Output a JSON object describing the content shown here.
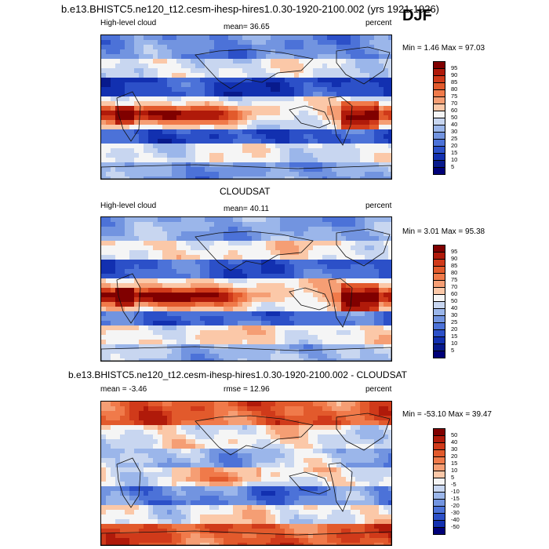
{
  "season": "DJF",
  "model_title": "b.e13.BHISTC5.ne120_t12.cesm-ihesp-hires1.0.30-1920-2100.002 (yrs 1921-1926)",
  "panels": [
    {
      "id": "model",
      "left": "High-level cloud",
      "center": "mean=  36.65",
      "right": "percent",
      "stats": "Min =   1.46 Max =  97.03"
    },
    {
      "id": "obs",
      "heading": "CLOUDSAT",
      "left": "High-level cloud",
      "center": "mean=  40.11",
      "right": "percent",
      "stats": "Min =   3.01 Max =  95.38"
    },
    {
      "id": "diff",
      "heading": "b.e13.BHISTC5.ne120_t12.cesm-ihesp-hires1.0.30-1920-2100.002 - CLOUDSAT",
      "left": "mean =  -3.46",
      "center": "rmse =  12.96",
      "right": "percent",
      "stats": "Min = -53.10 Max =  39.47"
    }
  ],
  "chart_data": [
    {
      "type": "heatmap",
      "title": "b.e13.BHISTC5.ne120_t12.cesm-ihesp-hires1.0.30-1920-2100.002 (yrs 1921-1926)",
      "variable": "High-level cloud",
      "units": "percent",
      "mean": 36.65,
      "min": 1.46,
      "max": 97.03,
      "levels": [
        "95",
        "90",
        "85",
        "80",
        "75",
        "70",
        "60",
        "50",
        "40",
        "30",
        "25",
        "20",
        "15",
        "10",
        "5"
      ],
      "colors": [
        "#800000",
        "#b01a0a",
        "#d03a1a",
        "#e25a2c",
        "#f07a4a",
        "#f59e74",
        "#fbc8a8",
        "#f5f5f5",
        "#c8d6f0",
        "#9bb6ea",
        "#7294e0",
        "#4c72d8",
        "#2c50c8",
        "#1230b0",
        "#081a8c",
        "#000078"
      ]
    },
    {
      "type": "heatmap",
      "title": "CLOUDSAT",
      "variable": "High-level cloud",
      "units": "percent",
      "mean": 40.11,
      "min": 3.01,
      "max": 95.38,
      "levels": [
        "95",
        "90",
        "85",
        "80",
        "75",
        "70",
        "60",
        "50",
        "40",
        "30",
        "25",
        "20",
        "15",
        "10",
        "5"
      ],
      "colors": [
        "#800000",
        "#b01a0a",
        "#d03a1a",
        "#e25a2c",
        "#f07a4a",
        "#f59e74",
        "#fbc8a8",
        "#f5f5f5",
        "#c8d6f0",
        "#9bb6ea",
        "#7294e0",
        "#4c72d8",
        "#2c50c8",
        "#1230b0",
        "#081a8c",
        "#000078"
      ]
    },
    {
      "type": "heatmap",
      "title": "b.e13.BHISTC5.ne120_t12.cesm-ihesp-hires1.0.30-1920-2100.002 - CLOUDSAT",
      "units": "percent",
      "mean": -3.46,
      "rmse": 12.96,
      "min": -53.1,
      "max": 39.47,
      "levels": [
        "50",
        "40",
        "30",
        "20",
        "15",
        "10",
        "5",
        "-5",
        "-10",
        "-15",
        "-20",
        "-30",
        "-40",
        "-50"
      ],
      "colors": [
        "#800000",
        "#b01a0a",
        "#d03a1a",
        "#e25a2c",
        "#f07a4a",
        "#f59e74",
        "#fbc8a8",
        "#f5f5f5",
        "#c8d6f0",
        "#9bb6ea",
        "#7294e0",
        "#4c72d8",
        "#2c50c8",
        "#1230b0",
        "#000078"
      ]
    }
  ]
}
